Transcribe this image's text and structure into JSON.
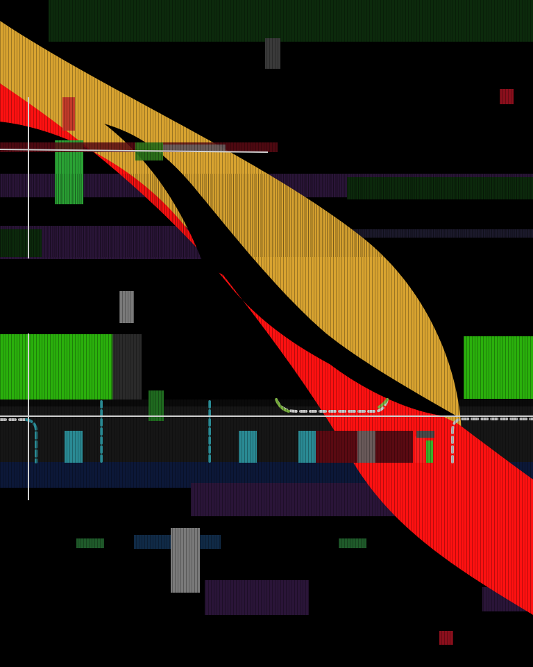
{
  "palette": {
    "background": "#000000",
    "gold_band": "#d8a330",
    "red_band": "#ff1111",
    "green_block": "#2ab00c",
    "dark_green_streak": "#0c2a0c",
    "purple_streak": "#2a1538",
    "navy_streak": "#0c1838",
    "dark_panel": "#161616",
    "teal_marker": "#2a8a94",
    "grey_block": "#7a7a7a",
    "maroon_square": "#8a0f1c",
    "crosshair": "#d0d0d0",
    "dash_line": "#bcbcbc"
  },
  "icons": [
    "crosshair-icon"
  ]
}
